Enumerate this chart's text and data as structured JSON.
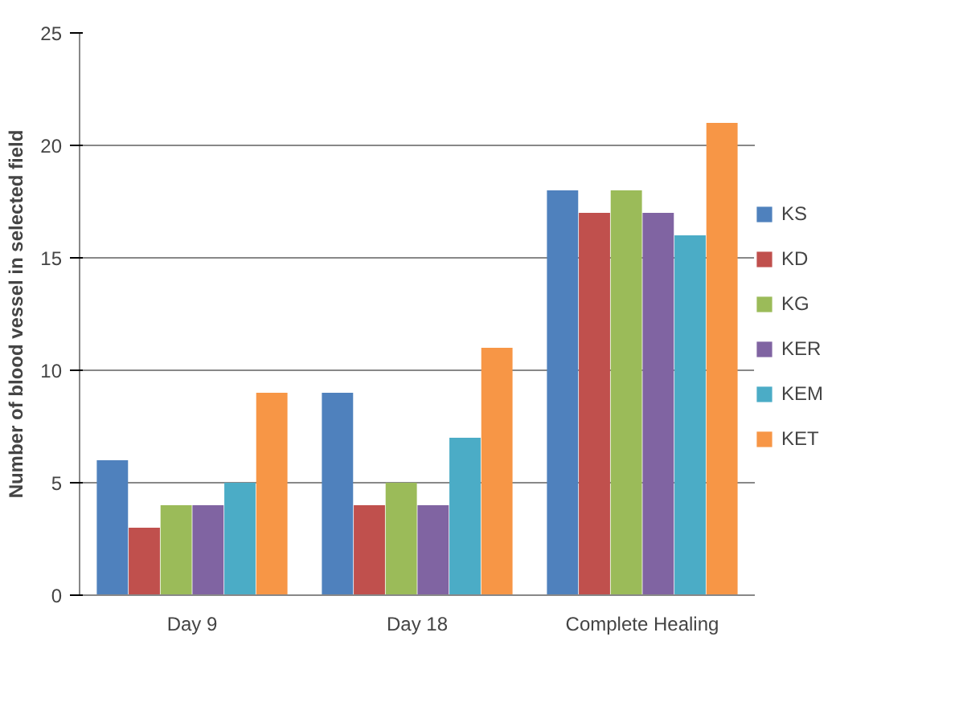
{
  "chart_data": {
    "type": "bar",
    "ylabel": "Number of blood vessel in selected field",
    "categories": [
      "Day 9",
      "Day 18",
      "Complete Healing"
    ],
    "series": [
      {
        "name": "KS",
        "color": "#4f81bd",
        "values": [
          6,
          9,
          18
        ]
      },
      {
        "name": "KD",
        "color": "#c0504d",
        "values": [
          3,
          4,
          17
        ]
      },
      {
        "name": "KG",
        "color": "#9bbb59",
        "values": [
          4,
          5,
          18
        ]
      },
      {
        "name": "KER",
        "color": "#8064a2",
        "values": [
          4,
          4,
          17
        ]
      },
      {
        "name": "KEM",
        "color": "#4bacc6",
        "values": [
          5,
          7,
          16
        ]
      },
      {
        "name": "KET",
        "color": "#f79646",
        "values": [
          9,
          11,
          21
        ]
      }
    ],
    "ylim": [
      0,
      25
    ],
    "yticks": [
      0,
      5,
      10,
      15,
      20,
      25
    ],
    "grid": "y",
    "legend": "right"
  }
}
